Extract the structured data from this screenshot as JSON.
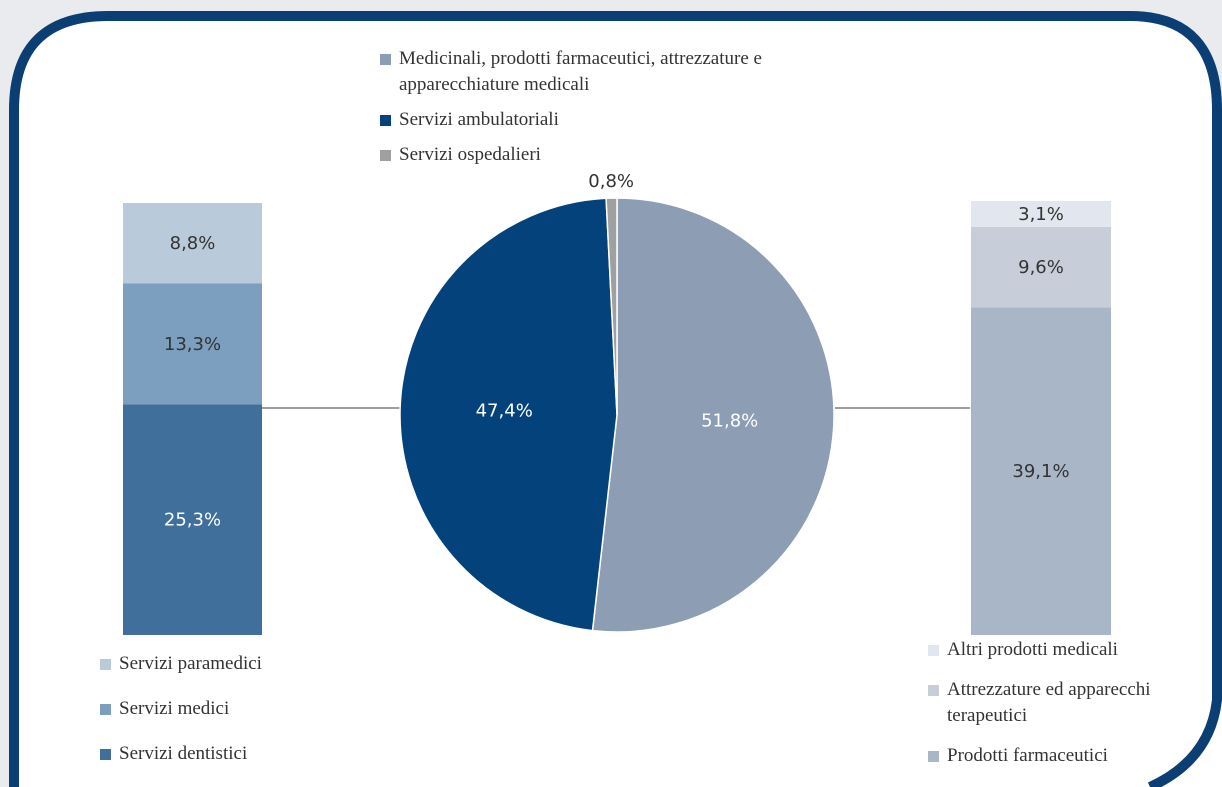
{
  "chart_data": [
    {
      "type": "pie",
      "categories": [
        "Medicinali, prodotti farmaceutici, attrezzature e apparecchiature medicali",
        "Servizi ambulatoriali",
        "Servizi ospedalieri"
      ],
      "values": [
        51.8,
        47.4,
        0.8
      ],
      "value_labels": [
        "51,8%",
        "47,4%",
        "0,8%"
      ],
      "colors": [
        "#8c9db4",
        "#03427a",
        "#a0a0a0"
      ]
    },
    {
      "type": "bar",
      "stacked": true,
      "categories": [
        null
      ],
      "series": [
        {
          "name": "Servizi paramedici",
          "color": "#b9cadb",
          "values": [
            8.8
          ],
          "value_labels": [
            "8,8%"
          ]
        },
        {
          "name": "Servizi medici",
          "color": "#7c9fbf",
          "values": [
            13.3
          ],
          "value_labels": [
            "13,3%"
          ]
        },
        {
          "name": "Servizi dentistici",
          "color": "#3f6f9a",
          "values": [
            25.3
          ],
          "value_labels": [
            "25,3%"
          ]
        }
      ]
    },
    {
      "type": "bar",
      "stacked": true,
      "categories": [
        null
      ],
      "series": [
        {
          "name": "Altri prodotti medicali",
          "color": "#e2e6ee",
          "values": [
            3.1
          ],
          "value_labels": [
            "3,1%"
          ]
        },
        {
          "name": "Attrezzature ed apparecchi terapeutici",
          "color": "#c7cdd9",
          "values": [
            9.6
          ],
          "value_labels": [
            "9,6%"
          ]
        },
        {
          "name": "Prodotti farmaceutici",
          "color": "#a9b6c8",
          "values": [
            39.1
          ],
          "value_labels": [
            "39,1%"
          ]
        }
      ]
    }
  ]
}
